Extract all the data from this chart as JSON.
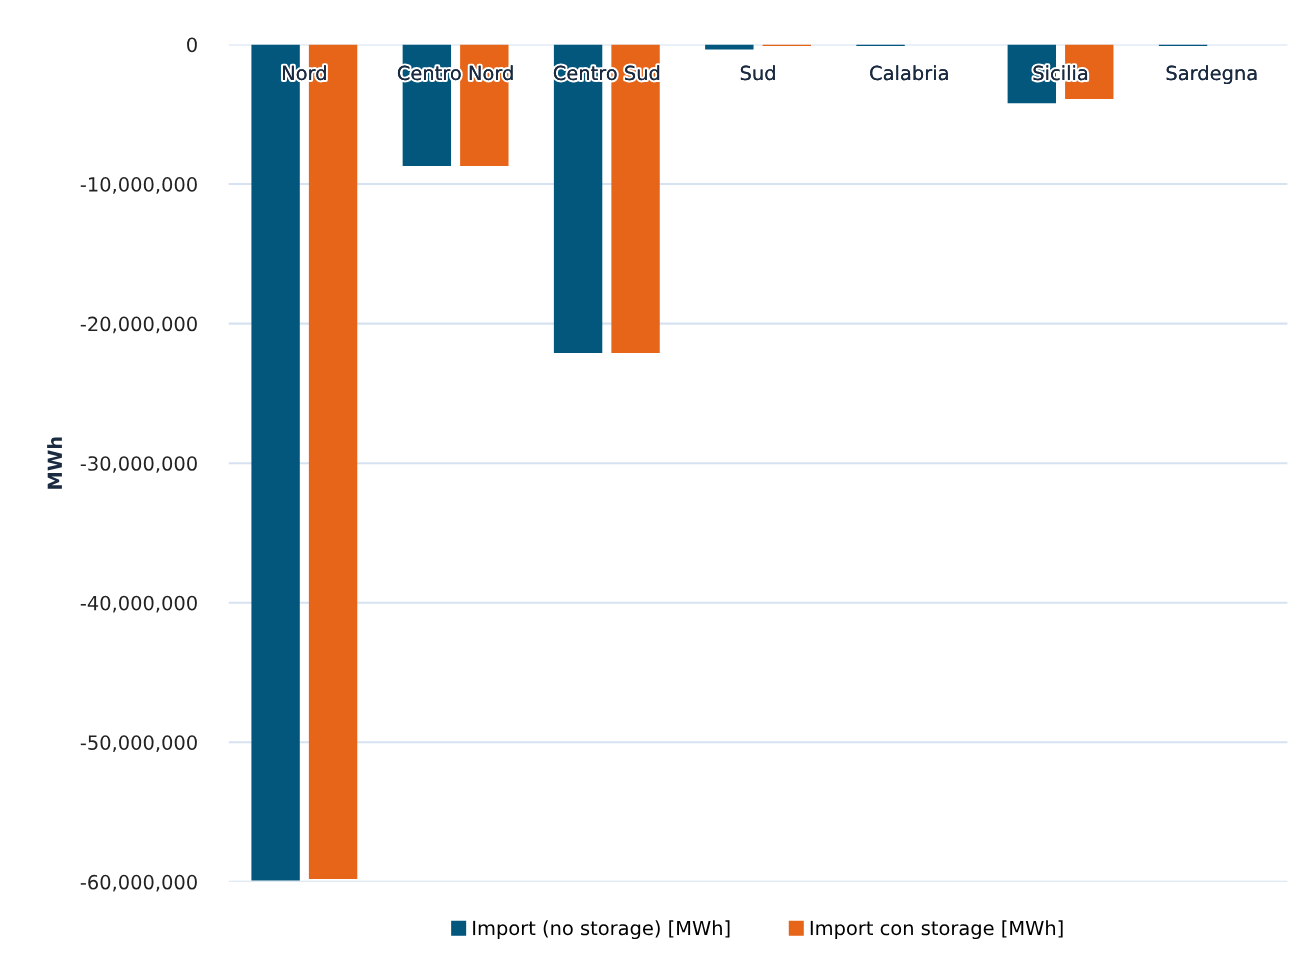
{
  "chart_data": {
    "type": "bar",
    "ylabel": "MWh",
    "categories": [
      "Nord",
      "Centro Nord",
      "Centro Sud",
      "Sud",
      "Calabria",
      "Sicilia",
      "Sardegna"
    ],
    "series": [
      {
        "name": "Import (no storage) [MWh]",
        "color": "#03577d",
        "values": [
          -59900000,
          -8700000,
          -22100000,
          -350000,
          -100000,
          -4200000,
          -100000
        ]
      },
      {
        "name": "Import con storage [MWh]",
        "color": "#e66518",
        "values": [
          -59800000,
          -8700000,
          -22100000,
          -100000,
          0,
          -3900000,
          0
        ]
      }
    ],
    "ylim": [
      -60000000,
      0
    ],
    "yticks": [
      {
        "value": -60000000,
        "label": "-60,000,000"
      },
      {
        "value": -50000000,
        "label": "-50,000,000"
      },
      {
        "value": -40000000,
        "label": "-40,000,000"
      },
      {
        "value": -30000000,
        "label": "-30,000,000"
      },
      {
        "value": -20000000,
        "label": "-20,000,000"
      },
      {
        "value": -10000000,
        "label": "-10,000,000"
      },
      0
    ],
    "grid": "y",
    "legend": "bottom"
  }
}
